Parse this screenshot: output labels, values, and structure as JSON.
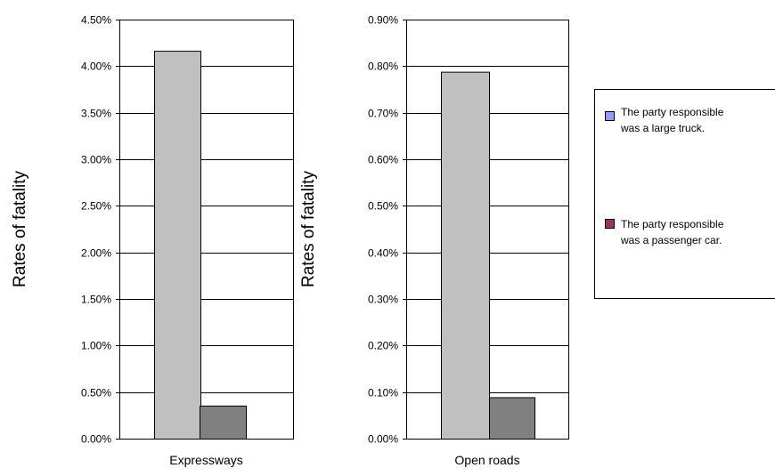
{
  "chart_data": [
    {
      "type": "bar",
      "title": "",
      "xlabel": "Expressways",
      "ylabel": "Rates of fatality",
      "ylim": [
        0,
        4.5
      ],
      "yticks": [
        "0.00%",
        "0.50%",
        "1.00%",
        "1.50%",
        "2.00%",
        "2.50%",
        "3.00%",
        "3.50%",
        "4.00%",
        "4.50%"
      ],
      "categories": [
        "Expressways"
      ],
      "series": [
        {
          "name": "The party responsible was a large truck.",
          "values": [
            4.16
          ]
        },
        {
          "name": "The party responsible was a passenger car.",
          "values": [
            0.35
          ]
        }
      ],
      "grid": true
    },
    {
      "type": "bar",
      "title": "",
      "xlabel": "Open roads",
      "ylabel": "Rates of fatality",
      "ylim": [
        0,
        0.9
      ],
      "yticks": [
        "0.00%",
        "0.10%",
        "0.20%",
        "0.30%",
        "0.40%",
        "0.50%",
        "0.60%",
        "0.70%",
        "0.80%",
        "0.90%"
      ],
      "categories": [
        "Open roads"
      ],
      "series": [
        {
          "name": "The party responsible was a large truck.",
          "values": [
            0.787
          ]
        },
        {
          "name": "The party responsible was a passenger car.",
          "values": [
            0.088
          ]
        }
      ],
      "grid": true
    }
  ],
  "legend": {
    "placement": "right",
    "items": [
      {
        "line1": "The party responsible",
        "line2": "was a large truck.",
        "swatch_color": "#9999ff"
      },
      {
        "line1": "The party responsible",
        "line2": "was a passenger car.",
        "swatch_color": "#993366"
      }
    ]
  },
  "colors": {
    "bar_large_truck": "#c0c0c0",
    "bar_passenger_car": "#808080",
    "gridline": "#000000"
  }
}
